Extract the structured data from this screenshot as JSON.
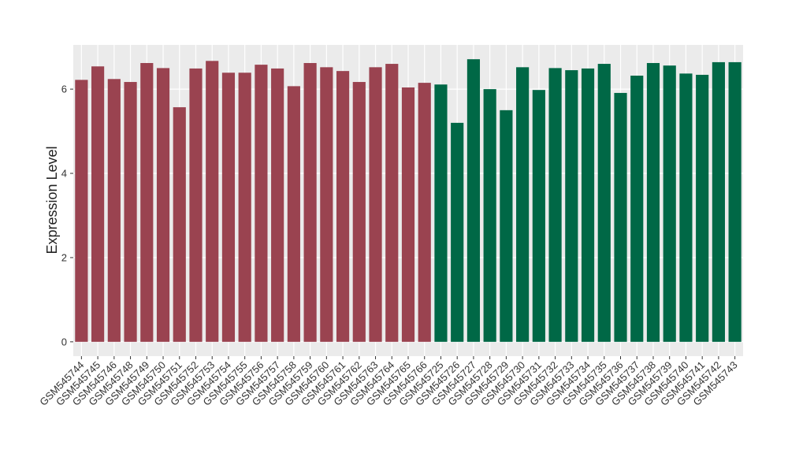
{
  "chart_data": {
    "type": "bar",
    "ylabel": "Expression Level",
    "categories": [
      "GSM545744",
      "GSM545745",
      "GSM545746",
      "GSM545748",
      "GSM545749",
      "GSM545750",
      "GSM545751",
      "GSM545752",
      "GSM545753",
      "GSM545754",
      "GSM545755",
      "GSM545756",
      "GSM545757",
      "GSM545758",
      "GSM545759",
      "GSM545760",
      "GSM545761",
      "GSM545762",
      "GSM545763",
      "GSM545764",
      "GSM545765",
      "GSM545766",
      "GSM545725",
      "GSM545726",
      "GSM545727",
      "GSM545728",
      "GSM545729",
      "GSM545730",
      "GSM545731",
      "GSM545732",
      "GSM545733",
      "GSM545734",
      "GSM545735",
      "GSM545736",
      "GSM545737",
      "GSM545738",
      "GSM545739",
      "GSM545740",
      "GSM545741",
      "GSM545742",
      "GSM545743"
    ],
    "values": [
      6.22,
      6.54,
      6.24,
      6.17,
      6.62,
      6.5,
      5.57,
      6.49,
      6.67,
      6.39,
      6.39,
      6.58,
      6.49,
      6.07,
      6.62,
      6.52,
      6.43,
      6.17,
      6.52,
      6.6,
      6.04,
      6.15,
      6.11,
      5.2,
      6.71,
      6.0,
      5.5,
      6.52,
      5.98,
      6.5,
      6.45,
      6.49,
      6.6,
      5.91,
      6.32,
      6.62,
      6.56,
      6.37,
      6.34,
      6.64,
      6.64
    ],
    "colors": [
      "#9a4350",
      "#9a4350",
      "#9a4350",
      "#9a4350",
      "#9a4350",
      "#9a4350",
      "#9a4350",
      "#9a4350",
      "#9a4350",
      "#9a4350",
      "#9a4350",
      "#9a4350",
      "#9a4350",
      "#9a4350",
      "#9a4350",
      "#9a4350",
      "#9a4350",
      "#9a4350",
      "#9a4350",
      "#9a4350",
      "#9a4350",
      "#9a4350",
      "#006846",
      "#006846",
      "#006846",
      "#006846",
      "#006846",
      "#006846",
      "#006846",
      "#006846",
      "#006846",
      "#006846",
      "#006846",
      "#006846",
      "#006846",
      "#006846",
      "#006846",
      "#006846",
      "#006846",
      "#006846",
      "#006846"
    ],
    "ylim": [
      -0.34,
      7.05
    ],
    "yticks": [
      0,
      2,
      4,
      6
    ],
    "grid": true
  }
}
